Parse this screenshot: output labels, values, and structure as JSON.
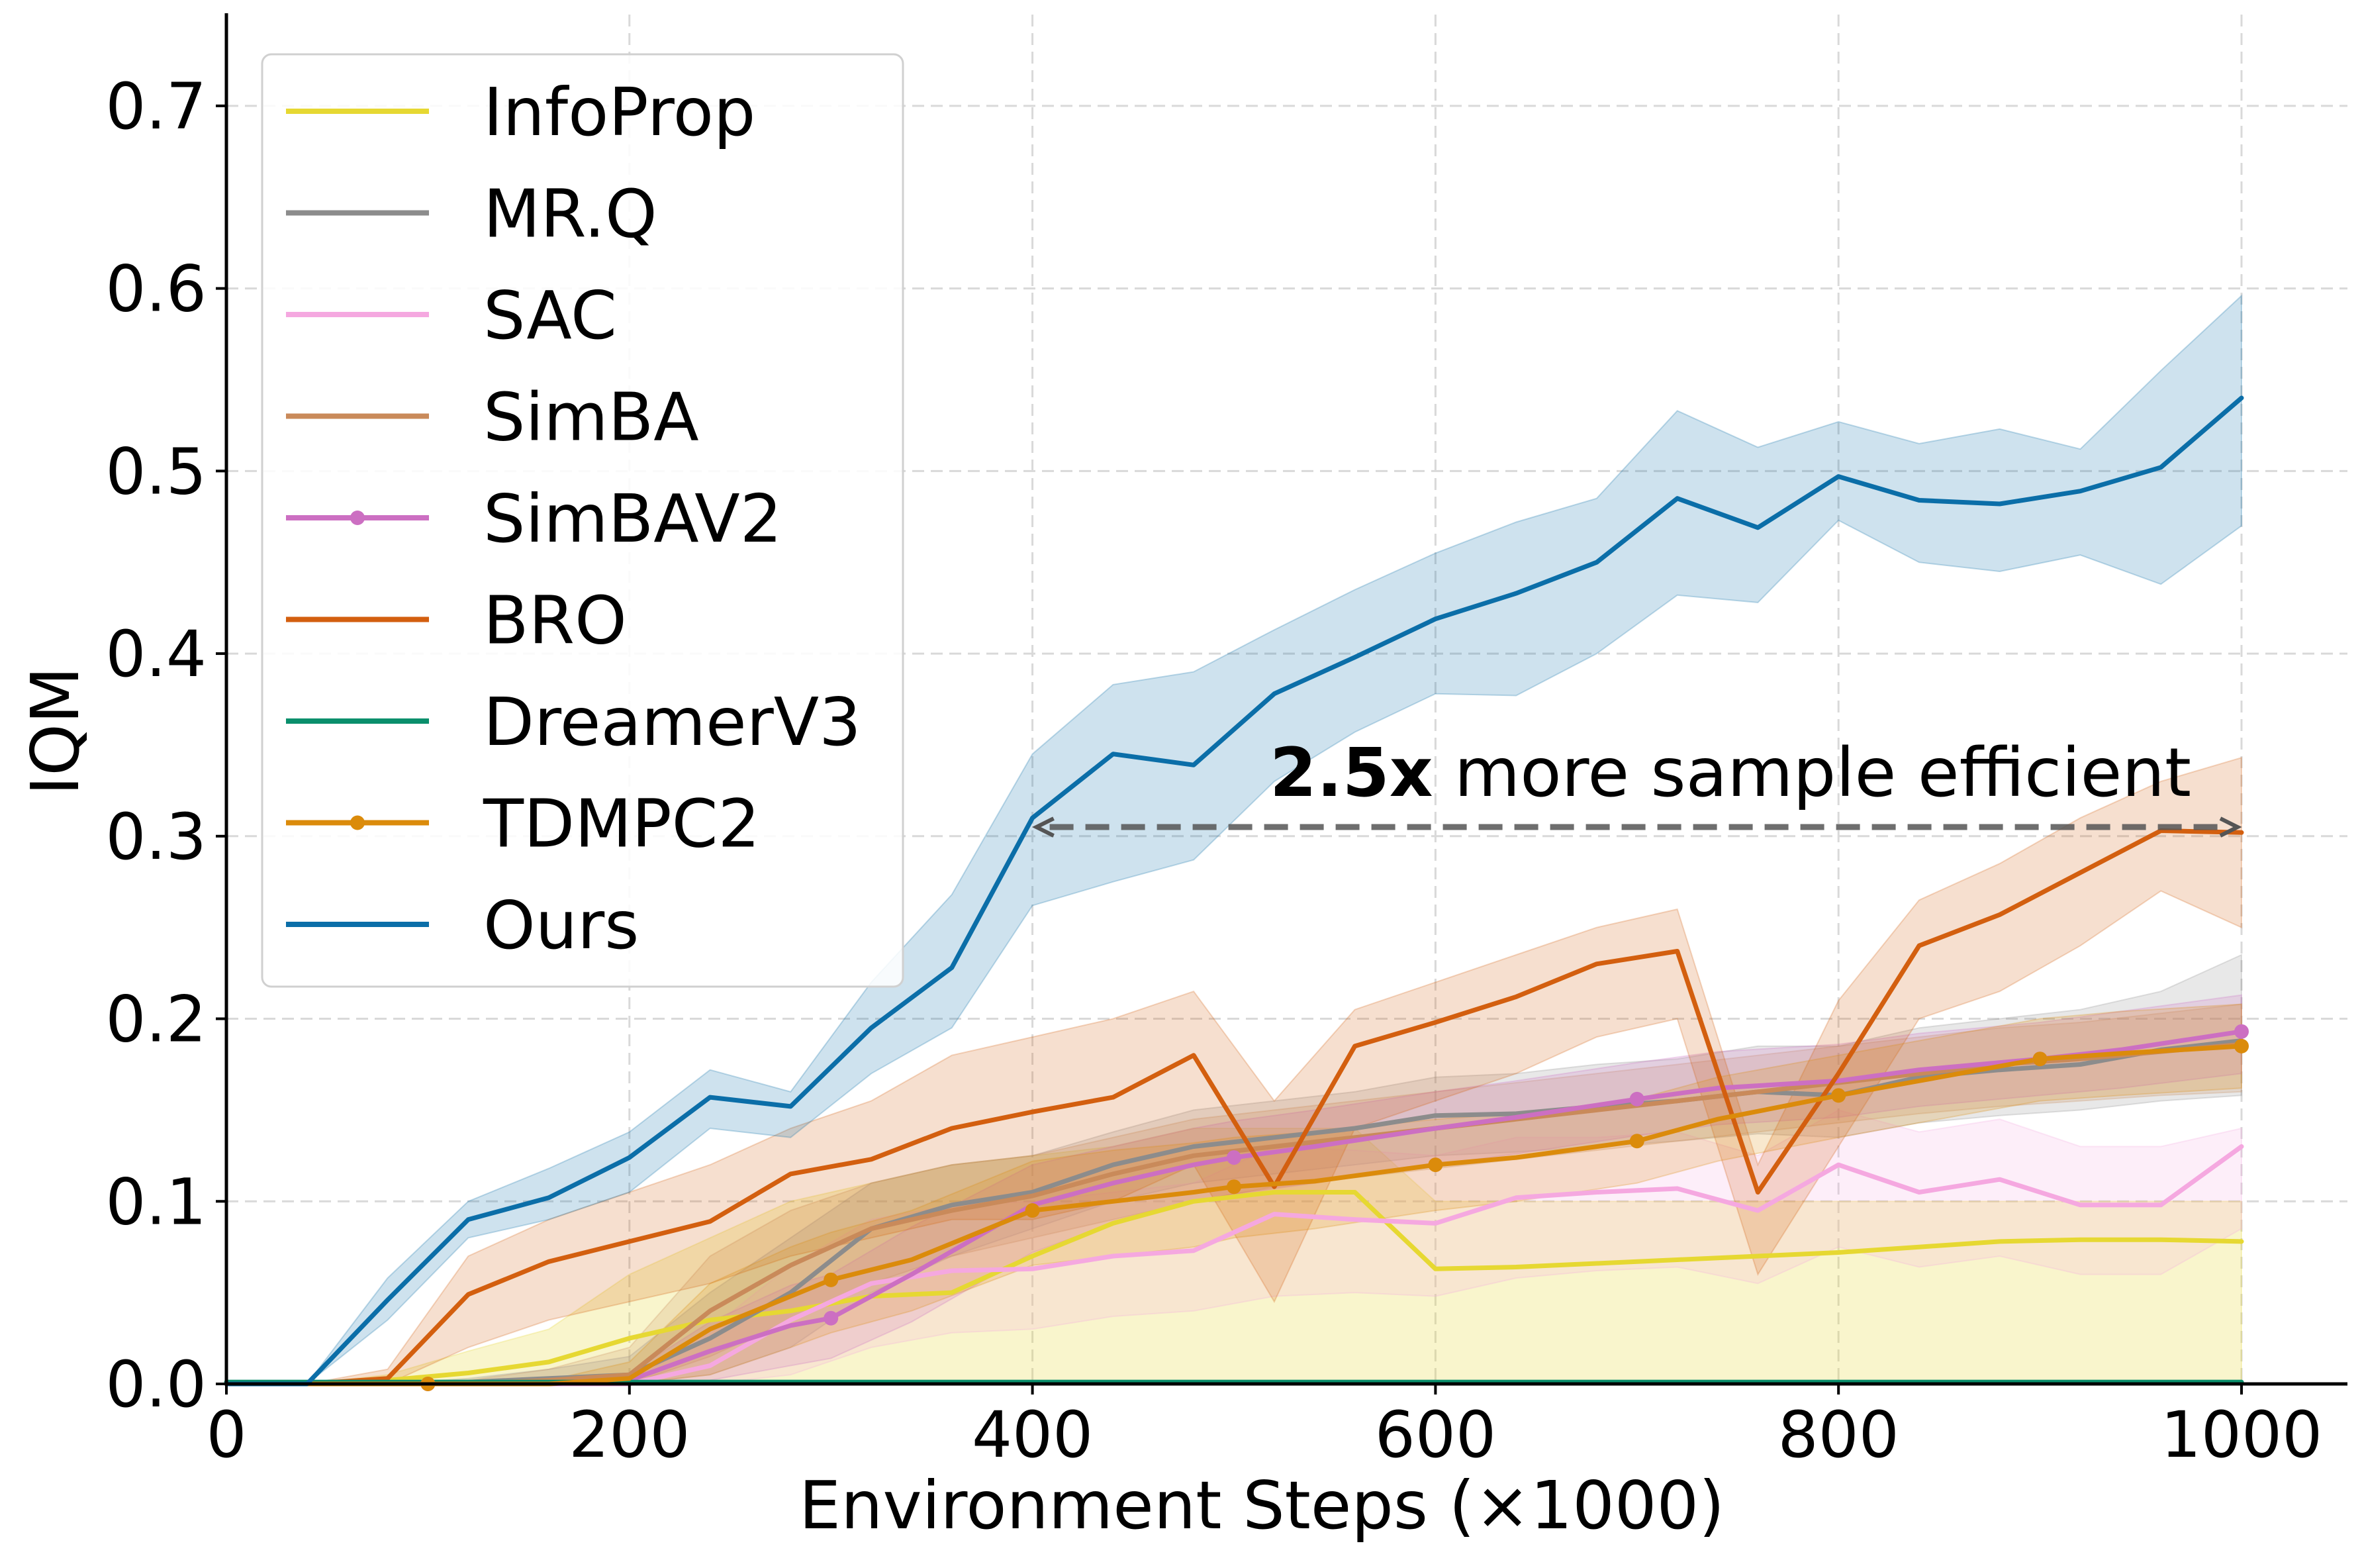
{
  "chart_data": {
    "type": "line",
    "title": "",
    "xlabel": "Environment Steps (×1000)",
    "ylabel": "IQM",
    "xlim": [
      0,
      1000
    ],
    "ylim": [
      0,
      0.75
    ],
    "xticks": [
      0,
      200,
      400,
      600,
      800,
      1000
    ],
    "xtick_labels": [
      "0",
      "200",
      "400",
      "600",
      "800",
      "1000"
    ],
    "yticks": [
      0,
      0.1,
      0.2,
      0.3,
      0.4,
      0.5,
      0.6,
      0.7
    ],
    "ytick_labels": [
      "0.0",
      "0.1",
      "0.2",
      "0.3",
      "0.4",
      "0.5",
      "0.6",
      "0.7"
    ],
    "grid": true,
    "legend_position": "upper-left",
    "annotation": {
      "bold_text": "2.5x",
      "text": " more sample efficient",
      "arrow_from_x": 400,
      "arrow_to_x": 1000,
      "arrow_y": 0.305
    },
    "series": [
      {
        "name": "InfoProp",
        "color": "#e6d832",
        "markers": false,
        "x": [
          0,
          40,
          80,
          120,
          160,
          200,
          240,
          280,
          320,
          360,
          400,
          440,
          480,
          520,
          560,
          600,
          640,
          680,
          720,
          760,
          800,
          840,
          880,
          920,
          960,
          1000
        ],
        "y": [
          0,
          0,
          0.002,
          0.006,
          0.012,
          0.025,
          0.035,
          0.04,
          0.048,
          0.05,
          0.07,
          0.088,
          0.1,
          0.105,
          0.105,
          0.063,
          0.064,
          0.066,
          0.068,
          0.07,
          0.072,
          0.075,
          0.078,
          0.079,
          0.079,
          0.078
        ],
        "lower": [
          0,
          0,
          0,
          0,
          0,
          0,
          0,
          0,
          0,
          0,
          0,
          0,
          0,
          0,
          0,
          0,
          0,
          0,
          0,
          0,
          0,
          0,
          0,
          0,
          0,
          0
        ],
        "upper": [
          0,
          0,
          0.005,
          0.018,
          0.03,
          0.06,
          0.08,
          0.1,
          0.11,
          0.12,
          0.125,
          0.13,
          0.14,
          0.14,
          0.14,
          0.1,
          0.1,
          0.1,
          0.1,
          0.1,
          0.1,
          0.1,
          0.1,
          0.1,
          0.1,
          0.1
        ]
      },
      {
        "name": "MR.Q",
        "color": "#8c8c8c",
        "markers": false,
        "x": [
          0,
          40,
          80,
          120,
          160,
          200,
          240,
          280,
          320,
          360,
          400,
          440,
          480,
          520,
          560,
          600,
          640,
          680,
          720,
          760,
          800,
          840,
          880,
          920,
          960,
          1000
        ],
        "y": [
          0,
          0,
          0,
          0.001,
          0.003,
          0.005,
          0.025,
          0.05,
          0.085,
          0.098,
          0.105,
          0.12,
          0.13,
          0.135,
          0.14,
          0.147,
          0.148,
          0.152,
          0.155,
          0.16,
          0.158,
          0.168,
          0.172,
          0.175,
          0.183,
          0.188
        ],
        "lower": [
          0,
          0,
          0,
          0,
          0,
          0,
          0.005,
          0.02,
          0.05,
          0.07,
          0.085,
          0.1,
          0.11,
          0.115,
          0.12,
          0.125,
          0.127,
          0.13,
          0.133,
          0.137,
          0.135,
          0.143,
          0.147,
          0.15,
          0.155,
          0.158
        ],
        "upper": [
          0,
          0,
          0,
          0.003,
          0.008,
          0.015,
          0.05,
          0.08,
          0.11,
          0.12,
          0.125,
          0.138,
          0.15,
          0.155,
          0.16,
          0.168,
          0.17,
          0.175,
          0.178,
          0.185,
          0.185,
          0.195,
          0.2,
          0.205,
          0.215,
          0.235
        ]
      },
      {
        "name": "SAC",
        "color": "#f5a8e0",
        "markers": false,
        "x": [
          0,
          40,
          80,
          120,
          160,
          200,
          240,
          280,
          320,
          360,
          400,
          440,
          480,
          520,
          560,
          600,
          640,
          680,
          720,
          760,
          800,
          840,
          880,
          920,
          960,
          1000
        ],
        "y": [
          0,
          0,
          0,
          0,
          0,
          0,
          0.01,
          0.035,
          0.055,
          0.062,
          0.063,
          0.07,
          0.073,
          0.093,
          0.09,
          0.088,
          0.102,
          0.105,
          0.107,
          0.095,
          0.12,
          0.105,
          0.112,
          0.098,
          0.098,
          0.13
        ],
        "lower": [
          0,
          0,
          0,
          0,
          0,
          0,
          0,
          0.005,
          0.02,
          0.028,
          0.03,
          0.037,
          0.04,
          0.048,
          0.05,
          0.048,
          0.058,
          0.062,
          0.064,
          0.055,
          0.075,
          0.064,
          0.07,
          0.06,
          0.06,
          0.085
        ],
        "upper": [
          0,
          0,
          0,
          0,
          0,
          0,
          0.03,
          0.065,
          0.09,
          0.098,
          0.1,
          0.105,
          0.11,
          0.13,
          0.128,
          0.125,
          0.135,
          0.135,
          0.138,
          0.125,
          0.15,
          0.138,
          0.145,
          0.13,
          0.13,
          0.14
        ]
      },
      {
        "name": "SimBA",
        "color": "#c98a5a",
        "markers": false,
        "x": [
          0,
          40,
          80,
          120,
          160,
          200,
          240,
          280,
          320,
          360,
          400,
          440,
          480,
          520,
          560,
          600,
          640,
          680,
          720,
          760,
          800,
          840,
          880,
          920,
          960,
          1000
        ],
        "y": [
          0,
          0,
          0,
          0,
          0.002,
          0.005,
          0.04,
          0.065,
          0.085,
          0.095,
          0.103,
          0.115,
          0.125,
          0.13,
          0.135,
          0.14,
          0.145,
          0.15,
          0.155,
          0.16,
          0.165,
          0.17,
          0.175,
          0.178,
          0.182,
          0.186
        ],
        "lower": [
          0,
          0,
          0,
          0,
          0,
          0,
          0.015,
          0.035,
          0.055,
          0.07,
          0.08,
          0.09,
          0.1,
          0.108,
          0.113,
          0.118,
          0.123,
          0.128,
          0.133,
          0.138,
          0.143,
          0.148,
          0.152,
          0.155,
          0.158,
          0.16
        ],
        "upper": [
          0,
          0,
          0,
          0.002,
          0.008,
          0.02,
          0.07,
          0.095,
          0.11,
          0.12,
          0.125,
          0.135,
          0.145,
          0.15,
          0.155,
          0.16,
          0.165,
          0.17,
          0.175,
          0.18,
          0.185,
          0.19,
          0.195,
          0.198,
          0.203,
          0.208
        ]
      },
      {
        "name": "SimBAV2",
        "color": "#cc6fc2",
        "markers": true,
        "x": [
          0,
          40,
          80,
          120,
          160,
          200,
          240,
          280,
          300,
          340,
          400,
          440,
          480,
          500,
          540,
          600,
          640,
          700,
          740,
          800,
          840,
          900,
          940,
          1000
        ],
        "y": [
          0,
          0,
          0,
          0,
          0,
          0.002,
          0.018,
          0.032,
          0.036,
          0.06,
          0.098,
          0.11,
          0.12,
          0.124,
          0.13,
          0.14,
          0.146,
          0.156,
          0.162,
          0.166,
          0.172,
          0.178,
          0.183,
          0.193
        ],
        "lower": [
          0,
          0,
          0,
          0,
          0,
          0,
          0.002,
          0.01,
          0.014,
          0.034,
          0.072,
          0.088,
          0.1,
          0.104,
          0.11,
          0.12,
          0.126,
          0.136,
          0.142,
          0.146,
          0.152,
          0.158,
          0.162,
          0.17
        ],
        "upper": [
          0,
          0,
          0,
          0,
          0,
          0.006,
          0.034,
          0.054,
          0.06,
          0.086,
          0.12,
          0.13,
          0.14,
          0.144,
          0.15,
          0.16,
          0.166,
          0.176,
          0.182,
          0.186,
          0.192,
          0.198,
          0.204,
          0.213
        ],
        "marker_x": [
          100,
          300,
          500,
          700,
          900,
          1000
        ]
      },
      {
        "name": "BRO",
        "color": "#d35f0f",
        "markers": false,
        "x": [
          0,
          40,
          80,
          120,
          160,
          200,
          240,
          280,
          320,
          360,
          400,
          440,
          480,
          520,
          560,
          600,
          640,
          680,
          720,
          760,
          800,
          840,
          880,
          920,
          960,
          1000
        ],
        "y": [
          0,
          0,
          0.003,
          0.049,
          0.067,
          0.078,
          0.089,
          0.115,
          0.123,
          0.14,
          0.149,
          0.157,
          0.18,
          0.108,
          0.185,
          0.198,
          0.212,
          0.23,
          0.237,
          0.105,
          0.17,
          0.24,
          0.257,
          0.28,
          0.303,
          0.302
        ],
        "lower": [
          0,
          0,
          0,
          0.02,
          0.035,
          0.045,
          0.055,
          0.07,
          0.08,
          0.09,
          0.09,
          0.1,
          0.12,
          0.045,
          0.14,
          0.155,
          0.17,
          0.19,
          0.2,
          0.06,
          0.13,
          0.2,
          0.215,
          0.24,
          0.27,
          0.25
        ],
        "upper": [
          0,
          0,
          0.008,
          0.07,
          0.09,
          0.105,
          0.12,
          0.14,
          0.155,
          0.18,
          0.19,
          0.2,
          0.215,
          0.155,
          0.205,
          0.22,
          0.235,
          0.25,
          0.26,
          0.12,
          0.21,
          0.265,
          0.285,
          0.31,
          0.33,
          0.343
        ]
      },
      {
        "name": "DreamerV3",
        "color": "#0a8f6c",
        "markers": false,
        "x": [
          0,
          1000
        ],
        "y": [
          0.001,
          0.001
        ],
        "lower": [
          0,
          0
        ],
        "upper": [
          0.002,
          0.002
        ]
      },
      {
        "name": "TDMPC2",
        "color": "#db8b0b",
        "markers": true,
        "x": [
          0,
          40,
          80,
          120,
          160,
          200,
          240,
          280,
          300,
          340,
          400,
          440,
          480,
          500,
          540,
          600,
          640,
          700,
          740,
          800,
          840,
          900,
          940,
          1000
        ],
        "y": [
          0,
          0,
          0,
          0,
          0,
          0.003,
          0.03,
          0.048,
          0.057,
          0.068,
          0.095,
          0.1,
          0.105,
          0.108,
          0.111,
          0.12,
          0.124,
          0.133,
          0.145,
          0.158,
          0.166,
          0.178,
          0.181,
          0.185
        ],
        "lower": [
          0,
          0,
          0,
          0,
          0,
          0,
          0.005,
          0.02,
          0.028,
          0.04,
          0.065,
          0.07,
          0.075,
          0.08,
          0.085,
          0.095,
          0.1,
          0.11,
          0.122,
          0.135,
          0.143,
          0.155,
          0.158,
          0.162
        ],
        "upper": [
          0,
          0,
          0,
          0,
          0.002,
          0.012,
          0.055,
          0.075,
          0.083,
          0.095,
          0.122,
          0.128,
          0.132,
          0.135,
          0.138,
          0.145,
          0.148,
          0.156,
          0.168,
          0.18,
          0.188,
          0.2,
          0.204,
          0.208
        ],
        "marker_x": [
          100,
          300,
          400,
          500,
          600,
          700,
          800,
          900,
          1000
        ]
      },
      {
        "name": "Ours",
        "color": "#0b6ea8",
        "markers": false,
        "x": [
          0,
          40,
          80,
          120,
          160,
          200,
          240,
          280,
          320,
          360,
          400,
          440,
          480,
          520,
          560,
          600,
          640,
          680,
          720,
          760,
          800,
          840,
          880,
          920,
          960,
          1000
        ],
        "y": [
          0,
          0,
          0.046,
          0.09,
          0.102,
          0.124,
          0.157,
          0.152,
          0.195,
          0.228,
          0.31,
          0.345,
          0.339,
          0.378,
          0.398,
          0.419,
          0.433,
          0.45,
          0.485,
          0.469,
          0.497,
          0.484,
          0.482,
          0.489,
          0.502,
          0.54
        ],
        "lower": [
          0,
          0,
          0.035,
          0.08,
          0.09,
          0.105,
          0.14,
          0.135,
          0.17,
          0.195,
          0.262,
          0.275,
          0.287,
          0.33,
          0.357,
          0.378,
          0.377,
          0.4,
          0.432,
          0.428,
          0.473,
          0.45,
          0.445,
          0.454,
          0.438,
          0.47
        ],
        "upper": [
          0,
          0,
          0.058,
          0.1,
          0.118,
          0.138,
          0.172,
          0.16,
          0.22,
          0.268,
          0.345,
          0.383,
          0.39,
          0.413,
          0.435,
          0.455,
          0.472,
          0.485,
          0.533,
          0.513,
          0.527,
          0.515,
          0.523,
          0.512,
          0.555,
          0.596
        ]
      }
    ]
  }
}
